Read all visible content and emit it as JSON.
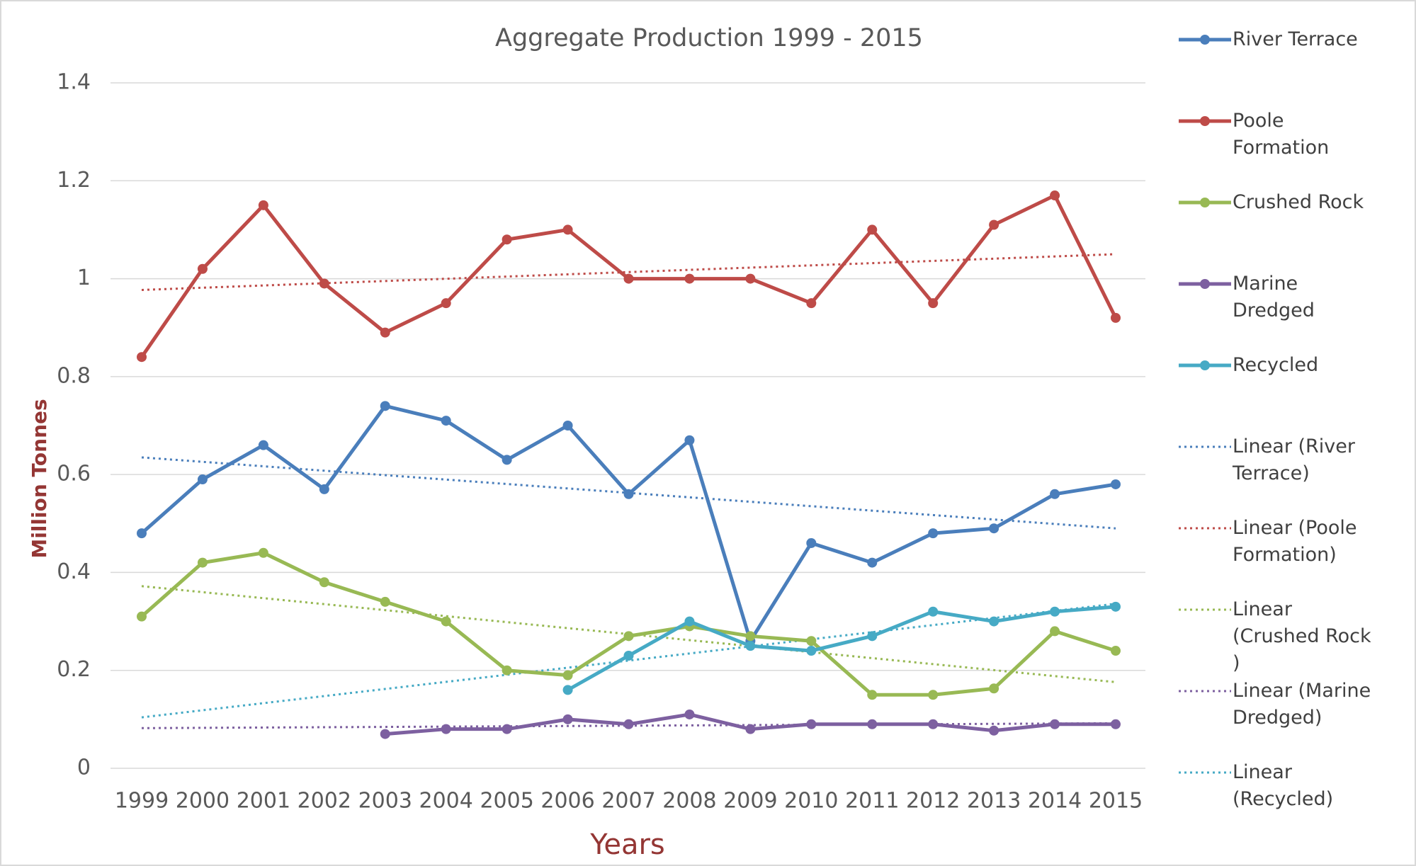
{
  "chart_data": {
    "type": "line",
    "title": "Aggregate Production 1999 - 2015",
    "x_label": "Years",
    "y_label": "Million Tonnes",
    "categories": [
      "1999",
      "2000",
      "2001",
      "2002",
      "2003",
      "2004",
      "2005",
      "2006",
      "2007",
      "2008",
      "2009",
      "2010",
      "2011",
      "2012",
      "2013",
      "2014",
      "2015"
    ],
    "ylim": [
      0,
      1.4
    ],
    "yticks": [
      0,
      0.2,
      0.4,
      0.6,
      0.8,
      1,
      1.2,
      1.4
    ],
    "grid": true,
    "legend": "right",
    "series": [
      {
        "name": "River Terrace",
        "color": "#4a7ebb",
        "values": [
          0.48,
          0.59,
          0.66,
          0.57,
          0.74,
          0.71,
          0.63,
          0.7,
          0.56,
          0.67,
          0.26,
          0.46,
          0.42,
          0.48,
          0.49,
          0.56,
          0.58
        ]
      },
      {
        "name": "Poole Formation",
        "color": "#be4b48",
        "values": [
          0.84,
          1.02,
          1.15,
          0.99,
          0.89,
          0.95,
          1.08,
          1.1,
          1.0,
          1.0,
          1.0,
          0.95,
          1.1,
          0.95,
          1.11,
          1.17,
          0.92
        ]
      },
      {
        "name": "Crushed Rock",
        "color": "#98b954",
        "values": [
          0.31,
          0.42,
          0.44,
          0.38,
          0.34,
          0.3,
          0.2,
          0.19,
          0.27,
          0.29,
          0.27,
          0.26,
          0.15,
          0.15,
          0.163,
          0.28,
          0.24
        ]
      },
      {
        "name": "Marine Dredged",
        "color": "#7d60a0",
        "values": [
          null,
          null,
          null,
          null,
          0.07,
          0.08,
          0.08,
          0.1,
          0.09,
          0.11,
          0.08,
          0.09,
          0.09,
          0.09,
          0.077,
          0.09,
          0.09
        ]
      },
      {
        "name": "Recycled",
        "color": "#46aac5",
        "values": [
          null,
          null,
          null,
          null,
          null,
          null,
          null,
          0.16,
          0.23,
          0.3,
          0.25,
          0.24,
          0.27,
          0.32,
          0.3,
          0.32,
          0.33
        ]
      }
    ],
    "trendlines": [
      {
        "name": "Linear (River Terrace)",
        "color": "#4a7ebb",
        "values": [
          0.635,
          0.49
        ]
      },
      {
        "name": "Linear (Poole Formation)",
        "color": "#be4b48",
        "values": [
          0.977,
          1.05
        ]
      },
      {
        "name": "Linear (Crushed Rock )",
        "color": "#98b954",
        "values": [
          0.372,
          0.176
        ]
      },
      {
        "name": "Linear (Marine Dredged)",
        "color": "#7d60a0",
        "values": [
          0.082,
          0.092
        ]
      },
      {
        "name": "Linear (Recycled)",
        "color": "#46aac5",
        "values": [
          0.104,
          0.336
        ]
      }
    ]
  }
}
